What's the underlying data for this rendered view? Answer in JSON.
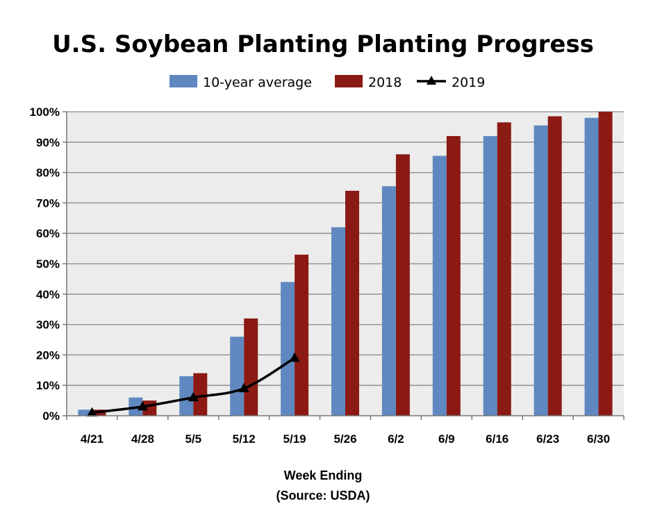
{
  "chart_data": {
    "type": "bar",
    "title": "U.S. Soybean Planting Planting Progress",
    "xlabel": "Week Ending",
    "source": "(Source: USDA)",
    "ylabel": "",
    "categories": [
      "4/21",
      "4/28",
      "5/5",
      "5/12",
      "5/19",
      "5/26",
      "6/2",
      "6/9",
      "6/16",
      "6/23",
      "6/30"
    ],
    "ylim": [
      0,
      100
    ],
    "y_ticks": [
      0,
      10,
      20,
      30,
      40,
      50,
      60,
      70,
      80,
      90,
      100
    ],
    "y_tick_labels": [
      "0%",
      "10%",
      "20%",
      "30%",
      "40%",
      "50%",
      "60%",
      "70%",
      "80%",
      "90%",
      "100%"
    ],
    "grid": true,
    "legend_position": "top",
    "series": [
      {
        "name": "10-year average",
        "kind": "bar",
        "color": "#6088C0",
        "values": [
          2,
          6,
          13,
          26,
          44,
          62,
          75.5,
          85.5,
          92,
          95.5,
          98
        ]
      },
      {
        "name": "2018",
        "kind": "bar",
        "color": "#8B1A14",
        "values": [
          2,
          5,
          14,
          32,
          53,
          74,
          86,
          92,
          96.5,
          98.5,
          100
        ]
      },
      {
        "name": "2019",
        "kind": "line",
        "color": "#000000",
        "marker": "triangle",
        "values": [
          1,
          3,
          6,
          9,
          19,
          null,
          null,
          null,
          null,
          null,
          null
        ]
      }
    ]
  }
}
